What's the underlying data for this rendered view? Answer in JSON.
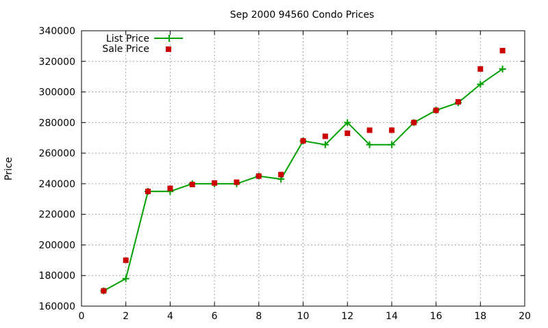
{
  "chart_data": {
    "type": "scatter",
    "title": "Sep 2000 94560 Condo Prices",
    "xlabel": "",
    "ylabel": "Price",
    "xlim": [
      0,
      20
    ],
    "ylim": [
      160000,
      340000
    ],
    "x_ticks": [
      0,
      2,
      4,
      6,
      8,
      10,
      12,
      14,
      16,
      18,
      20
    ],
    "y_ticks": [
      160000,
      180000,
      200000,
      220000,
      240000,
      260000,
      280000,
      300000,
      320000,
      340000
    ],
    "grid": true,
    "legend_position": "top-left",
    "series": [
      {
        "name": "List Price",
        "style": "line-with-plus",
        "color": "#00a000",
        "x": [
          1,
          2,
          3,
          4,
          5,
          6,
          7,
          8,
          9,
          10,
          11,
          12,
          13,
          14,
          15,
          16,
          17,
          18,
          19
        ],
        "y": [
          170000,
          178000,
          235000,
          235000,
          240000,
          240000,
          240000,
          245000,
          243000,
          268000,
          265500,
          280000,
          265500,
          265500,
          280000,
          288000,
          293000,
          305000,
          315000
        ]
      },
      {
        "name": "Sale Price",
        "style": "square-points",
        "color": "#cc0000",
        "x": [
          1,
          2,
          3,
          4,
          5,
          6,
          7,
          8,
          9,
          10,
          11,
          12,
          13,
          14,
          15,
          16,
          17,
          18,
          19
        ],
        "y": [
          170000,
          190000,
          235000,
          237000,
          239500,
          240500,
          241000,
          245000,
          246000,
          268000,
          271000,
          273000,
          275000,
          275000,
          280000,
          288000,
          293500,
          315000,
          327000
        ]
      }
    ]
  }
}
